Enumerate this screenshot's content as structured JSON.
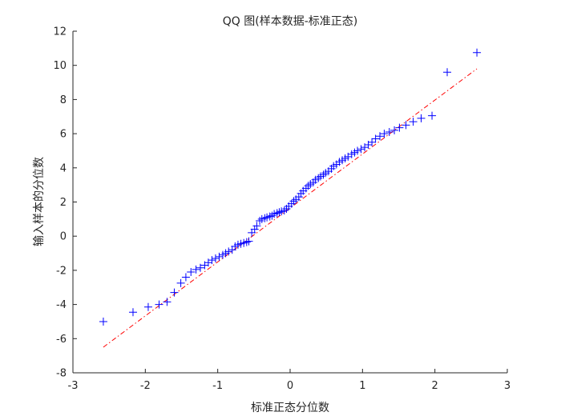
{
  "chart_data": {
    "type": "scatter",
    "title": "QQ 图(样本数据-标准正态)",
    "xlabel": "标准正态分位数",
    "ylabel": "输入样本的分位数",
    "xlim": [
      -3,
      3
    ],
    "ylim": [
      -8,
      12
    ],
    "xticks": [
      "-3",
      "-2",
      "-1",
      "0",
      "1",
      "2",
      "3"
    ],
    "yticks": [
      "-8",
      "-6",
      "-4",
      "-2",
      "0",
      "2",
      "4",
      "6",
      "8",
      "10",
      "12"
    ],
    "grid": false,
    "marker": "+",
    "series": [
      {
        "kind": "points",
        "color": "#0000ff",
        "x": [
          -2.58,
          -2.17,
          -1.96,
          -1.81,
          -1.7,
          -1.6,
          -1.51,
          -1.44,
          -1.37,
          -1.3,
          -1.24,
          -1.18,
          -1.13,
          -1.08,
          -1.03,
          -0.98,
          -0.93,
          -0.89,
          -0.85,
          -0.8,
          -0.76,
          -0.72,
          -0.68,
          -0.64,
          -0.6,
          -0.57,
          -0.53,
          -0.49,
          -0.46,
          -0.42,
          -0.39,
          -0.35,
          -0.32,
          -0.28,
          -0.25,
          -0.22,
          -0.18,
          -0.15,
          -0.12,
          -0.08,
          -0.05,
          -0.02,
          0.02,
          0.05,
          0.08,
          0.12,
          0.15,
          0.18,
          0.22,
          0.25,
          0.28,
          0.32,
          0.35,
          0.39,
          0.42,
          0.46,
          0.49,
          0.53,
          0.57,
          0.6,
          0.64,
          0.68,
          0.72,
          0.76,
          0.8,
          0.85,
          0.89,
          0.93,
          0.98,
          1.03,
          1.08,
          1.13,
          1.18,
          1.24,
          1.3,
          1.37,
          1.44,
          1.51,
          1.6,
          1.7,
          1.81,
          1.96,
          2.17,
          2.58
        ],
        "y": [
          -5.0,
          -4.45,
          -4.15,
          -4.0,
          -3.85,
          -3.3,
          -2.75,
          -2.4,
          -2.1,
          -1.95,
          -1.85,
          -1.7,
          -1.55,
          -1.4,
          -1.3,
          -1.2,
          -1.1,
          -1.0,
          -0.9,
          -0.8,
          -0.6,
          -0.5,
          -0.45,
          -0.4,
          -0.35,
          -0.3,
          0.2,
          0.4,
          0.6,
          0.9,
          1.0,
          1.05,
          1.1,
          1.15,
          1.2,
          1.3,
          1.35,
          1.4,
          1.45,
          1.5,
          1.6,
          1.75,
          1.9,
          2.05,
          2.15,
          2.3,
          2.5,
          2.65,
          2.8,
          2.95,
          3.05,
          3.15,
          3.3,
          3.4,
          3.5,
          3.6,
          3.7,
          3.8,
          3.95,
          4.1,
          4.2,
          4.35,
          4.45,
          4.55,
          4.65,
          4.8,
          4.9,
          5.0,
          5.1,
          5.2,
          5.35,
          5.5,
          5.7,
          5.85,
          6.0,
          6.1,
          6.2,
          6.35,
          6.5,
          6.7,
          6.9,
          7.05,
          9.6,
          10.75
        ]
      },
      {
        "kind": "reference-line",
        "color": "#ff0000",
        "style": "dash-dot",
        "x": [
          -2.58,
          2.58
        ],
        "y": [
          -6.5,
          9.8
        ]
      }
    ]
  }
}
